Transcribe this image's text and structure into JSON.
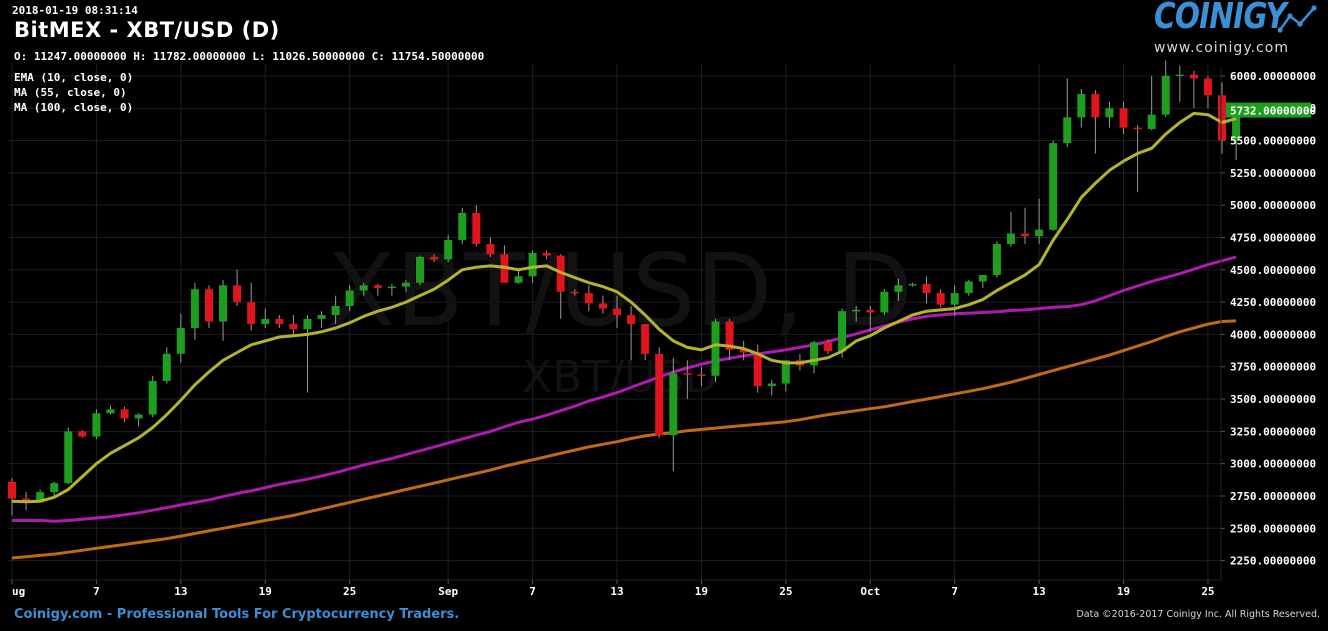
{
  "header": {
    "timestamp": "2018-01-19 08:31:14",
    "title": "BitMEX - XBT/USD (D)",
    "ohlc": "O: 11247.00000000 H: 11782.00000000 L: 11026.50000000 C: 11754.50000000"
  },
  "indicators": [
    {
      "label": "EMA (10, close, 0)",
      "color": "#b3b32c"
    },
    {
      "label": "MA (55, close, 0)",
      "color": "#b01ab0"
    },
    {
      "label": "MA (100, close, 0)",
      "color": "#c06a14"
    }
  ],
  "logo": {
    "word": "COINIGY",
    "url": "www.coinigy.com",
    "icon": "chart-line-icon"
  },
  "footer": {
    "left": "Coinigy.com - Professional Tools For Cryptocurrency Traders.",
    "right": "Data ©2016-2017 Coinigy Inc. All Rights Reserved."
  },
  "watermark": {
    "big": "XBT/USD, D",
    "small": "XBT/USD"
  },
  "colors": {
    "up": "#1e9e1e",
    "down": "#e0141d",
    "background": "#000000",
    "grid": "#1e1e1e",
    "last_price_bg": "#1e9e1e"
  },
  "chart_data": {
    "type": "candlestick",
    "ylim": [
      2100,
      6100
    ],
    "y_ticks": [
      "2250.00000000",
      "2500.00000000",
      "2750.00000000",
      "3000.00000000",
      "3250.00000000",
      "3500.00000000",
      "3750.00000000",
      "4000.00000000",
      "4250.00000000",
      "4500.00000000",
      "4750.00000000",
      "5000.00000000",
      "5250.00000000",
      "5500.00000000",
      "5750.00000000",
      "6000.00000000"
    ],
    "x_ticks": [
      {
        "label": "ug",
        "index": 0
      },
      {
        "label": "7",
        "index": 6
      },
      {
        "label": "13",
        "index": 12
      },
      {
        "label": "19",
        "index": 18
      },
      {
        "label": "25",
        "index": 24
      },
      {
        "label": "Sep",
        "index": 31
      },
      {
        "label": "7",
        "index": 37
      },
      {
        "label": "13",
        "index": 43
      },
      {
        "label": "19",
        "index": 49
      },
      {
        "label": "25",
        "index": 55
      },
      {
        "label": "Oct",
        "index": 61
      },
      {
        "label": "7",
        "index": 67
      },
      {
        "label": "13",
        "index": 73
      },
      {
        "label": "19",
        "index": 79
      },
      {
        "label": "25",
        "index": 85
      }
    ],
    "last_price": "5732.00000000",
    "candles": [
      [
        2860,
        2890,
        2600,
        2730
      ],
      [
        2730,
        2780,
        2640,
        2700
      ],
      [
        2700,
        2800,
        2700,
        2780
      ],
      [
        2780,
        2860,
        2740,
        2850
      ],
      [
        2850,
        3280,
        2840,
        3250
      ],
      [
        3250,
        3260,
        3200,
        3210
      ],
      [
        3210,
        3420,
        3190,
        3390
      ],
      [
        3390,
        3450,
        3380,
        3420
      ],
      [
        3420,
        3440,
        3320,
        3350
      ],
      [
        3350,
        3390,
        3290,
        3380
      ],
      [
        3380,
        3680,
        3360,
        3640
      ],
      [
        3640,
        3900,
        3620,
        3850
      ],
      [
        3850,
        4160,
        3780,
        4050
      ],
      [
        4050,
        4400,
        3960,
        4350
      ],
      [
        4350,
        4380,
        4050,
        4100
      ],
      [
        4100,
        4420,
        3950,
        4380
      ],
      [
        4380,
        4500,
        4220,
        4250
      ],
      [
        4250,
        4400,
        4030,
        4080
      ],
      [
        4080,
        4200,
        4050,
        4120
      ],
      [
        4120,
        4150,
        4050,
        4080
      ],
      [
        4080,
        4150,
        4000,
        4040
      ],
      [
        4040,
        4150,
        3550,
        4120
      ],
      [
        4120,
        4180,
        4050,
        4150
      ],
      [
        4150,
        4300,
        4080,
        4220
      ],
      [
        4220,
        4380,
        4180,
        4340
      ],
      [
        4340,
        4400,
        4300,
        4380
      ],
      [
        4380,
        4390,
        4300,
        4360
      ],
      [
        4360,
        4390,
        4300,
        4370
      ],
      [
        4370,
        4420,
        4330,
        4400
      ],
      [
        4400,
        4610,
        4380,
        4600
      ],
      [
        4600,
        4620,
        4560,
        4580
      ],
      [
        4580,
        4770,
        4560,
        4730
      ],
      [
        4730,
        4980,
        4700,
        4940
      ],
      [
        4940,
        5000,
        4680,
        4700
      ],
      [
        4700,
        4750,
        4600,
        4620
      ],
      [
        4620,
        4690,
        4420,
        4400
      ],
      [
        4400,
        4500,
        4390,
        4450
      ],
      [
        4450,
        4650,
        4400,
        4630
      ],
      [
        4630,
        4650,
        4580,
        4610
      ],
      [
        4610,
        4620,
        4120,
        4330
      ],
      [
        4330,
        4350,
        4300,
        4320
      ],
      [
        4320,
        4380,
        4180,
        4240
      ],
      [
        4240,
        4300,
        4160,
        4200
      ],
      [
        4200,
        4300,
        4050,
        4150
      ],
      [
        4150,
        4220,
        3800,
        4080
      ],
      [
        4080,
        4080,
        3800,
        3850
      ],
      [
        3850,
        3900,
        3200,
        3220
      ],
      [
        3220,
        3820,
        2940,
        3700
      ],
      [
        3700,
        3800,
        3500,
        3690
      ],
      [
        3690,
        3750,
        3600,
        3680
      ],
      [
        3680,
        4120,
        3630,
        4100
      ],
      [
        4100,
        4120,
        3800,
        3880
      ],
      [
        3880,
        3950,
        3800,
        3860
      ],
      [
        3860,
        3920,
        3550,
        3600
      ],
      [
        3600,
        3650,
        3530,
        3620
      ],
      [
        3620,
        3800,
        3560,
        3800
      ],
      [
        3800,
        3850,
        3720,
        3760
      ],
      [
        3760,
        3950,
        3700,
        3940
      ],
      [
        3940,
        3960,
        3850,
        3870
      ],
      [
        3870,
        4200,
        3820,
        4180
      ],
      [
        4180,
        4220,
        4100,
        4190
      ],
      [
        4190,
        4220,
        4020,
        4170
      ],
      [
        4170,
        4350,
        4150,
        4330
      ],
      [
        4330,
        4430,
        4260,
        4380
      ],
      [
        4380,
        4400,
        4370,
        4390
      ],
      [
        4390,
        4450,
        4240,
        4320
      ],
      [
        4320,
        4350,
        4210,
        4230
      ],
      [
        4230,
        4380,
        4140,
        4320
      ],
      [
        4320,
        4420,
        4300,
        4410
      ],
      [
        4410,
        4450,
        4360,
        4460
      ],
      [
        4460,
        4720,
        4440,
        4700
      ],
      [
        4700,
        4950,
        4680,
        4780
      ],
      [
        4780,
        4980,
        4700,
        4760
      ],
      [
        4760,
        5050,
        4700,
        4810
      ],
      [
        4810,
        5500,
        4800,
        5480
      ],
      [
        5480,
        5980,
        5450,
        5680
      ],
      [
        5680,
        5900,
        5600,
        5860
      ],
      [
        5860,
        5890,
        5400,
        5680
      ],
      [
        5680,
        5800,
        5600,
        5750
      ],
      [
        5750,
        5800,
        5550,
        5600
      ],
      [
        5600,
        5620,
        5100,
        5590
      ],
      [
        5590,
        6000,
        5580,
        5700
      ],
      [
        5700,
        6120,
        5680,
        6000
      ],
      [
        6000,
        6080,
        5800,
        6010
      ],
      [
        6010,
        6040,
        5750,
        5980
      ],
      [
        5980,
        6000,
        5750,
        5850
      ],
      [
        5850,
        5950,
        5400,
        5500
      ],
      [
        5500,
        5760,
        5350,
        5732
      ]
    ],
    "ema10": [
      2710,
      2705,
      2710,
      2740,
      2800,
      2900,
      3000,
      3080,
      3140,
      3200,
      3280,
      3380,
      3490,
      3610,
      3710,
      3800,
      3860,
      3920,
      3950,
      3980,
      3990,
      4000,
      4020,
      4050,
      4090,
      4140,
      4180,
      4210,
      4250,
      4300,
      4350,
      4420,
      4500,
      4520,
      4530,
      4520,
      4500,
      4520,
      4530,
      4480,
      4440,
      4400,
      4370,
      4330,
      4250,
      4150,
      4040,
      3950,
      3900,
      3880,
      3920,
      3910,
      3890,
      3850,
      3800,
      3780,
      3780,
      3800,
      3820,
      3870,
      3950,
      3990,
      4050,
      4100,
      4150,
      4180,
      4190,
      4200,
      4230,
      4270,
      4340,
      4400,
      4460,
      4540,
      4730,
      4890,
      5060,
      5170,
      5270,
      5340,
      5400,
      5440,
      5550,
      5640,
      5710,
      5700,
      5640,
      5670
    ],
    "ma55": [
      2560,
      2560,
      2560,
      2555,
      2560,
      2570,
      2580,
      2590,
      2605,
      2620,
      2640,
      2660,
      2680,
      2700,
      2720,
      2745,
      2770,
      2790,
      2815,
      2840,
      2860,
      2880,
      2905,
      2930,
      2960,
      2990,
      3015,
      3040,
      3070,
      3100,
      3130,
      3160,
      3190,
      3220,
      3250,
      3285,
      3320,
      3345,
      3375,
      3410,
      3445,
      3485,
      3515,
      3550,
      3590,
      3630,
      3670,
      3710,
      3740,
      3770,
      3795,
      3815,
      3835,
      3850,
      3865,
      3880,
      3900,
      3920,
      3945,
      3975,
      4005,
      4035,
      4065,
      4095,
      4120,
      4140,
      4150,
      4160,
      4165,
      4170,
      4175,
      4185,
      4190,
      4200,
      4210,
      4215,
      4230,
      4260,
      4300,
      4340,
      4375,
      4410,
      4440,
      4470,
      4505,
      4540,
      4570,
      4600
    ],
    "ma100": [
      2270,
      2280,
      2290,
      2300,
      2315,
      2330,
      2345,
      2360,
      2375,
      2390,
      2405,
      2420,
      2440,
      2460,
      2480,
      2500,
      2520,
      2540,
      2560,
      2580,
      2600,
      2625,
      2650,
      2675,
      2700,
      2725,
      2750,
      2775,
      2800,
      2825,
      2850,
      2875,
      2900,
      2925,
      2950,
      2980,
      3005,
      3030,
      3055,
      3080,
      3105,
      3130,
      3150,
      3170,
      3195,
      3215,
      3230,
      3240,
      3255,
      3265,
      3275,
      3285,
      3295,
      3305,
      3315,
      3325,
      3340,
      3360,
      3380,
      3395,
      3410,
      3425,
      3440,
      3460,
      3480,
      3500,
      3520,
      3540,
      3560,
      3580,
      3605,
      3630,
      3660,
      3690,
      3720,
      3750,
      3780,
      3810,
      3840,
      3875,
      3910,
      3945,
      3985,
      4020,
      4050,
      4080,
      4100,
      4105
    ]
  }
}
